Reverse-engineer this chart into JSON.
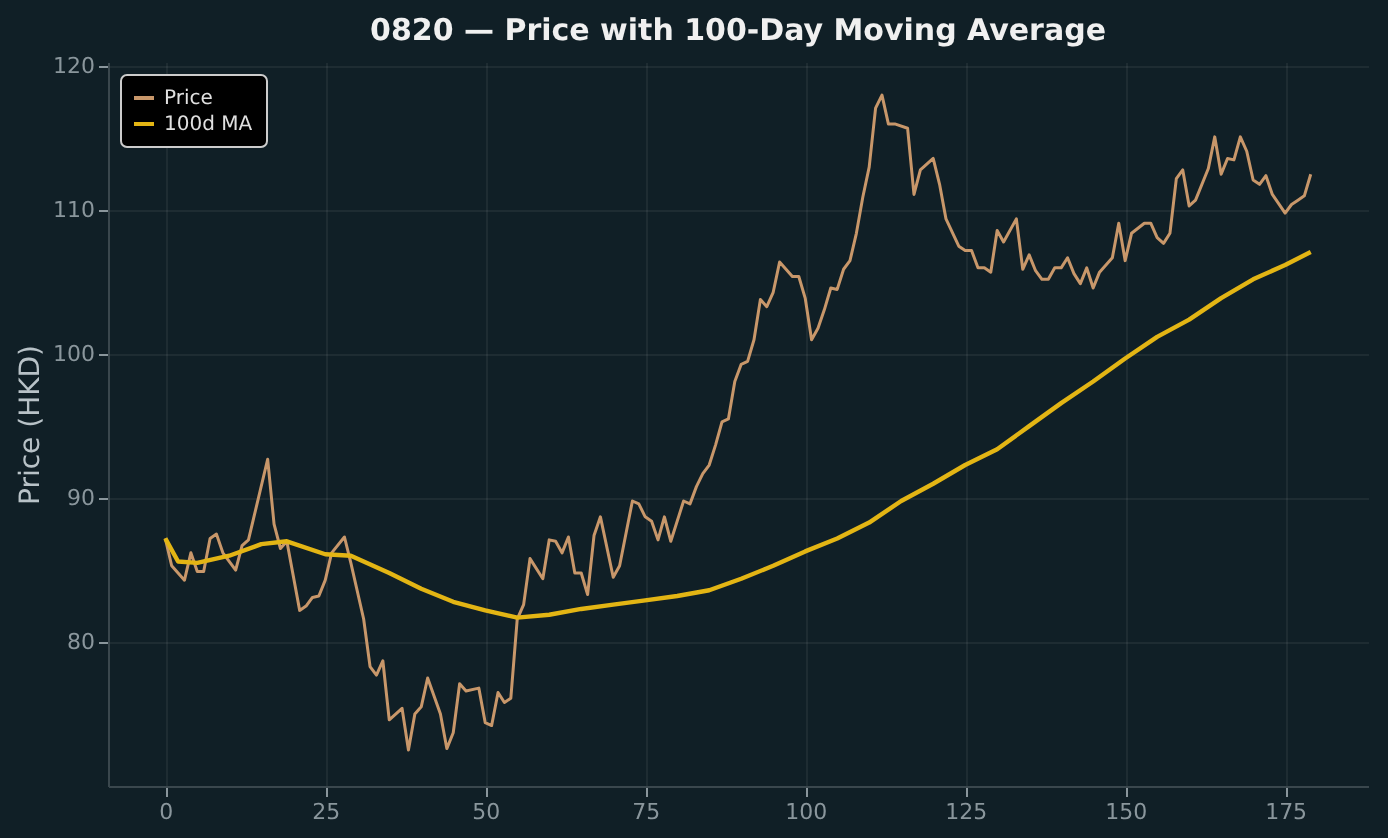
{
  "chart_data": {
    "type": "line",
    "title": "0820 — Price with 100-Day Moving Average",
    "ylabel": "Price (HKD)",
    "xlim": [
      -8.95,
      187.95
    ],
    "xticks": [
      0,
      25,
      50,
      75,
      100,
      125,
      150,
      175
    ],
    "ylim": [
      70.0,
      120.3
    ],
    "yticks": [
      80,
      90,
      100,
      110,
      120
    ],
    "grid": true,
    "legend": "top left",
    "line_style": "solid",
    "marker": "none",
    "series": [
      {
        "name": "Price",
        "color": "#c8976a",
        "x": [
          0,
          1,
          3,
          4,
          5,
          6,
          7,
          8,
          9,
          11,
          12,
          13,
          16,
          17,
          18,
          19,
          21,
          22,
          23,
          24,
          25,
          26,
          28,
          29,
          31,
          32,
          33,
          34,
          35,
          37,
          38,
          39,
          40,
          41,
          43,
          44,
          45,
          46,
          47,
          49,
          50,
          51,
          52,
          53,
          54,
          55,
          56,
          57,
          59,
          60,
          61,
          62,
          63,
          64,
          65,
          66,
          67,
          68,
          70,
          71,
          73,
          74,
          75,
          76,
          77,
          78,
          79,
          81,
          82,
          83,
          84,
          85,
          86,
          87,
          88,
          89,
          90,
          91,
          92,
          93,
          94,
          95,
          96,
          97,
          98,
          99,
          100,
          101,
          102,
          103,
          104,
          105,
          106,
          107,
          108,
          109,
          110,
          111,
          112,
          113,
          114,
          116,
          117,
          118,
          120,
          121,
          122,
          124,
          125,
          126,
          127,
          128,
          129,
          130,
          131,
          133,
          134,
          135,
          136,
          137,
          138,
          139,
          140,
          141,
          142,
          143,
          144,
          145,
          146,
          148,
          149,
          150,
          151,
          153,
          154,
          155,
          156,
          157,
          158,
          159,
          160,
          161,
          163,
          164,
          165,
          166,
          167,
          168,
          169,
          170,
          171,
          172,
          173,
          175,
          176,
          177,
          178,
          179
        ],
        "values": [
          87.2,
          85.3,
          84.3,
          86.2,
          84.9,
          84.9,
          87.2,
          87.5,
          86.2,
          85.0,
          86.7,
          87.1,
          92.7,
          88.2,
          86.5,
          87.0,
          82.2,
          82.5,
          83.1,
          83.2,
          84.3,
          86.2,
          87.3,
          85.5,
          81.6,
          78.3,
          77.7,
          78.7,
          74.6,
          75.4,
          72.5,
          75.0,
          75.5,
          77.5,
          75.0,
          72.6,
          73.7,
          77.1,
          76.6,
          76.8,
          74.4,
          74.2,
          76.5,
          75.8,
          76.1,
          81.6,
          82.6,
          85.8,
          84.4,
          87.1,
          87.0,
          86.2,
          87.3,
          84.8,
          84.8,
          83.3,
          87.4,
          88.7,
          84.5,
          85.3,
          89.8,
          89.6,
          88.7,
          88.4,
          87.1,
          88.7,
          87.0,
          89.8,
          89.6,
          90.8,
          91.7,
          92.3,
          93.7,
          95.3,
          95.5,
          98.1,
          99.3,
          99.5,
          101.0,
          103.8,
          103.3,
          104.3,
          106.4,
          105.9,
          105.4,
          105.4,
          103.9,
          101.0,
          101.8,
          103.1,
          104.6,
          104.5,
          105.9,
          106.5,
          108.4,
          110.9,
          113.0,
          117.1,
          118.0,
          116.0,
          116.0,
          115.7,
          111.1,
          112.8,
          113.6,
          111.8,
          109.4,
          107.5,
          107.2,
          107.2,
          106.0,
          106.0,
          105.7,
          108.6,
          107.8,
          109.4,
          105.9,
          106.9,
          105.8,
          105.2,
          105.2,
          106.0,
          106.0,
          106.7,
          105.6,
          104.9,
          106.0,
          104.6,
          105.7,
          106.7,
          109.1,
          106.5,
          108.4,
          109.1,
          109.1,
          108.1,
          107.7,
          108.4,
          112.2,
          112.8,
          110.3,
          110.7,
          112.9,
          115.1,
          112.5,
          113.6,
          113.5,
          115.1,
          114.1,
          112.1,
          111.8,
          112.4,
          111.1,
          109.8,
          110.4,
          110.7,
          111.0,
          112.5
        ]
      },
      {
        "name": "100d MA",
        "color": "#e3b514",
        "x": [
          0,
          2,
          5,
          10,
          15,
          19,
          25,
          29,
          35,
          40,
          45,
          50,
          55,
          60,
          65,
          70,
          75,
          80,
          85,
          90,
          95,
          100,
          105,
          110,
          115,
          120,
          125,
          130,
          135,
          140,
          145,
          150,
          155,
          160,
          165,
          170,
          175,
          179
        ],
        "values": [
          87.2,
          85.6,
          85.5,
          86.0,
          86.8,
          87.0,
          86.1,
          86.0,
          84.8,
          83.7,
          82.8,
          82.2,
          81.7,
          81.9,
          82.3,
          82.6,
          82.9,
          83.2,
          83.6,
          84.4,
          85.3,
          86.3,
          87.2,
          88.3,
          89.8,
          91.0,
          92.3,
          93.4,
          95.0,
          96.6,
          98.1,
          99.7,
          101.2,
          102.4,
          103.9,
          105.2,
          106.2,
          107.1
        ]
      }
    ]
  }
}
